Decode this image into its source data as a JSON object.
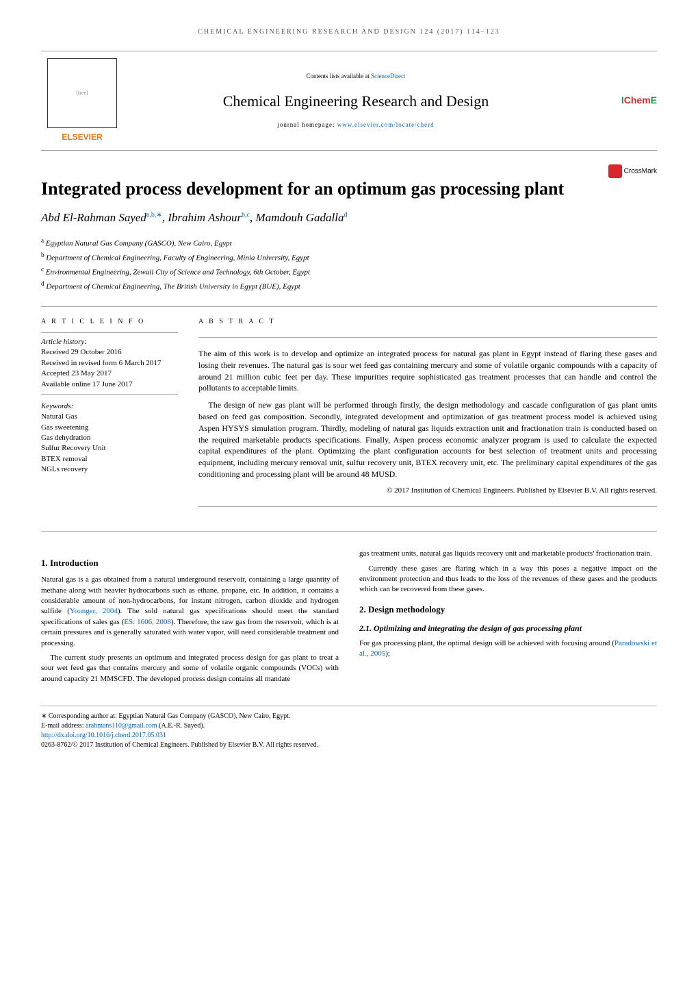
{
  "journal_header": "CHEMICAL ENGINEERING RESEARCH AND DESIGN 124 (2017) 114–123",
  "banner": {
    "elsevier": "ELSEVIER",
    "contents_prefix": "Contents lists available at ",
    "contents_link": "ScienceDirect",
    "journal_title": "Chemical Engineering Research and Design",
    "homepage_prefix": "journal homepage: ",
    "homepage_link": "www.elsevier.com/locate/cherd",
    "ichem_i": "I",
    "ichem_chem": "Chem",
    "ichem_e": "E"
  },
  "crossmark": "CrossMark",
  "article_title": "Integrated process development for an optimum gas processing plant",
  "authors_html": "Abd El-Rahman Sayed",
  "author_sup1": "a,b,∗",
  "author2": ", Ibrahim Ashour",
  "author_sup2": "b,c",
  "author3": ", Mamdouh Gadalla",
  "author_sup3": "d",
  "affiliations": {
    "a": "Egyptian Natural Gas Company (GASCO), New Cairo, Egypt",
    "b": "Department of Chemical Engineering, Faculty of Engineering, Minia University, Egypt",
    "c": "Environmental Engineering, Zewail City of Science and Technology, 6th October, Egypt",
    "d": "Department of Chemical Engineering, The British University in Egypt (BUE), Egypt"
  },
  "info_head": "A R T I C L E  I N F O",
  "abstract_head": "A B S T R A C T",
  "history_label": "Article history:",
  "history": {
    "received": "Received 29 October 2016",
    "revised": "Received in revised form 6 March 2017",
    "accepted": "Accepted 23 May 2017",
    "online": "Available online 17 June 2017"
  },
  "kw_label": "Keywords:",
  "keywords": [
    "Natural Gas",
    "Gas sweetening",
    "Gas dehydration",
    "Sulfur Recovery Unit",
    "BTEX removal",
    "NGLs recovery"
  ],
  "abstract": {
    "p1": "The aim of this work is to develop and optimize an integrated process for natural gas plant in Egypt instead of flaring these gases and losing their revenues. The natural gas is sour wet feed gas containing mercury and some of volatile organic compounds with a capacity of around 21 million cubic feet per day. These impurities require sophisticated gas treatment processes that can handle and control the pollutants to acceptable limits.",
    "p2": "The design of new gas plant will be performed through firstly, the design methodology and cascade configuration of gas plant units based on feed gas composition. Secondly, integrated development and optimization of gas treatment process model is achieved using Aspen HYSYS simulation program. Thirdly, modeling of natural gas liquids extraction unit and fractionation train is conducted based on the required marketable products specifications. Finally, Aspen process economic analyzer program is used to calculate the expected capital expenditures of the plant. Optimizing the plant configuration accounts for best selection of treatment units and processing equipment, including mercury removal unit, sulfur recovery unit, BTEX recovery unit, etc. The preliminary capital expenditures of the gas conditioning and processing plant will be around 48 MUSD.",
    "copyright": "© 2017 Institution of Chemical Engineers. Published by Elsevier B.V. All rights reserved."
  },
  "sections": {
    "s1_title": "1.      Introduction",
    "s1_p1a": "Natural gas is a gas obtained from a natural underground reservoir, containing a large quantity of methane along with heavier hydrocarbons such as ethane, propane, etc. In addition, it contains a considerable amount of non-hydrocarbons, for instant nitrogen, carbon dioxide and hydrogen sulfide (",
    "s1_ref1": "Younger, 2004",
    "s1_p1b": "). The sold natural gas specifications should meet the standard specifications of sales gas (",
    "s1_ref2": "ES: 1606, 2008",
    "s1_p1c": "). Therefore, the raw gas from the reservoir, which is at certain pressures and is generally saturated with water vapor, will need considerable treatment and processing.",
    "s1_p2": "The current study presents an optimum and integrated process design for gas plant to treat a sour wet feed gas that contains mercury and some of volatile organic compounds (VOCs) with around capacity 21 MMSCFD. The developed process design contains all mandate",
    "s1_p3": "gas treatment units, natural gas liquids recovery unit and marketable products' fractionation train.",
    "s1_p4": "Currently these gases are flaring which in a way this poses a negative impact on the environment protection and thus leads to the loss of the revenues of these gases and the products which can be recovered from these gases.",
    "s2_title": "2.      Design methodology",
    "s21_title": "2.1.    Optimizing and integrating the design of gas processing plant",
    "s21_p1a": "For gas processing plant, the optimal design will be achieved with focusing around (",
    "s21_ref1": "Paradowski et al., 2005",
    "s21_p1b": ");"
  },
  "footer": {
    "corr_label": "∗ Corresponding author at",
    "corr_text": ": Egyptian Natural Gas Company (GASCO), New Cairo, Egypt.",
    "email_label": "E-mail address: ",
    "email": "arahmans110@gmail.com",
    "email_suffix": " (A.E.-R. Sayed).",
    "doi": "http://dx.doi.org/10.1016/j.cherd.2017.05.031",
    "issn": "0263-8762/© 2017 Institution of Chemical Engineers. Published by Elsevier B.V. All rights reserved."
  },
  "colors": {
    "link": "#0066cc",
    "elsevier_orange": "#e67817",
    "ichem_green": "#159a47",
    "ichem_red": "#d9272e"
  }
}
